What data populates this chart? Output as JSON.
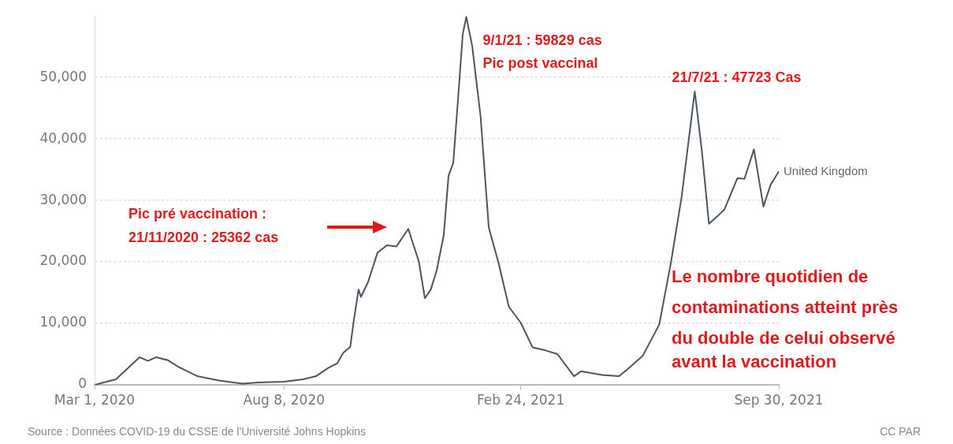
{
  "chart_data": {
    "type": "line",
    "xlim": [
      "2020-03-01",
      "2021-09-30"
    ],
    "xticks": [
      {
        "value": "2020-03-01",
        "label": "Mar 1, 2020"
      },
      {
        "value": "2020-08-08",
        "label": "Aug 8, 2020"
      },
      {
        "value": "2021-02-24",
        "label": "Feb 24, 2021"
      },
      {
        "value": "2021-09-30",
        "label": "Sep 30, 2021"
      }
    ],
    "ylim": [
      0,
      60000
    ],
    "yticks": [
      {
        "value": 0,
        "label": "0"
      },
      {
        "value": 10000,
        "label": "10,000"
      },
      {
        "value": 20000,
        "label": "20,000"
      },
      {
        "value": 30000,
        "label": "30,000"
      },
      {
        "value": 40000,
        "label": "40,000"
      },
      {
        "value": 50000,
        "label": "50,000"
      }
    ],
    "grid": "y",
    "legend": false,
    "series": [
      {
        "name": "United Kingdom",
        "color": "#4b5560",
        "x": [
          "2020-03-01",
          "2020-03-19",
          "2020-04-08",
          "2020-04-15",
          "2020-04-22",
          "2020-05-02",
          "2020-05-11",
          "2020-05-27",
          "2020-06-14",
          "2020-07-04",
          "2020-07-17",
          "2020-08-08",
          "2020-08-24",
          "2020-09-04",
          "2020-09-14",
          "2020-09-22",
          "2020-09-27",
          "2020-10-03",
          "2020-10-06",
          "2020-10-10",
          "2020-10-12",
          "2020-10-18",
          "2020-10-26",
          "2020-11-03",
          "2020-11-11",
          "2020-11-21",
          "2020-11-30",
          "2020-12-05",
          "2020-12-10",
          "2020-12-15",
          "2020-12-21",
          "2020-12-25",
          "2020-12-29",
          "2021-01-02",
          "2021-01-06",
          "2021-01-09",
          "2021-01-14",
          "2021-01-21",
          "2021-01-28",
          "2021-02-05",
          "2021-02-14",
          "2021-02-24",
          "2021-03-06",
          "2021-03-17",
          "2021-03-27",
          "2021-04-10",
          "2021-04-16",
          "2021-05-04",
          "2021-05-18",
          "2021-05-25",
          "2021-06-07",
          "2021-06-21",
          "2021-07-01",
          "2021-07-10",
          "2021-07-21",
          "2021-07-27",
          "2021-08-02",
          "2021-08-09",
          "2021-08-15",
          "2021-08-26",
          "2021-09-01",
          "2021-09-09",
          "2021-09-17",
          "2021-09-23",
          "2021-09-30"
        ],
        "values": [
          0,
          900,
          4500,
          3900,
          4500,
          4000,
          2900,
          1400,
          700,
          200,
          400,
          500,
          900,
          1400,
          2700,
          3500,
          5200,
          6200,
          10500,
          15500,
          14300,
          16700,
          21500,
          22700,
          22500,
          25362,
          20000,
          14100,
          15500,
          18600,
          24400,
          34000,
          36100,
          46400,
          57000,
          59829,
          55100,
          43800,
          25600,
          20000,
          12700,
          10100,
          6100,
          5600,
          5000,
          1400,
          2200,
          1600,
          1400,
          2500,
          4700,
          9800,
          20000,
          30700,
          47723,
          38100,
          26200,
          27400,
          28500,
          33600,
          33500,
          38300,
          29000,
          32500,
          34700
        ]
      }
    ],
    "annotations": [
      "Pic pré vaccination :\n21/11/2020 : 25362 cas",
      {
        "text": "9/1/21 : 59829 cas\nPic post vaccinal",
        "x": "2021-01-09",
        "y": 59829
      },
      {
        "text": "21/7/21 : 47723 Cas",
        "x": "2021-07-21",
        "y": 47723
      },
      "Le nombre quotidien de\ncontaminations atteint près\ndu double de celui observé\navant la vaccination",
      "Source : Données COVID-19 du CSSE de l'Université Johns Hopkins",
      "CC PAR"
    ]
  }
}
